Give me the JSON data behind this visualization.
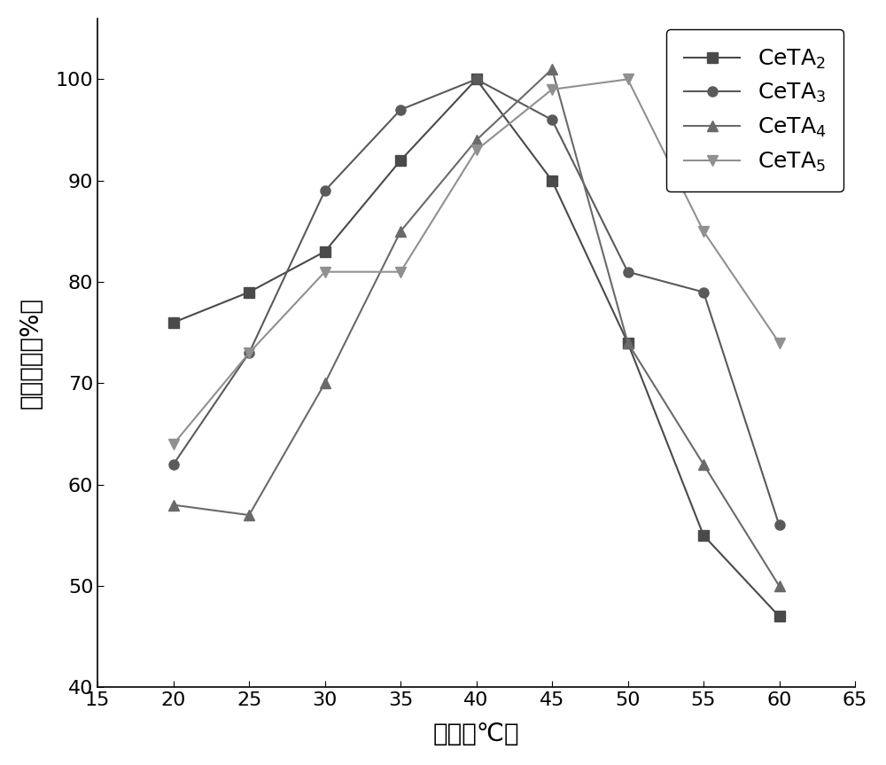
{
  "x": [
    20,
    25,
    30,
    35,
    40,
    45,
    50,
    55,
    60
  ],
  "CeTA2": [
    76,
    79,
    83,
    92,
    100,
    90,
    74,
    55,
    47
  ],
  "CeTA3": [
    62,
    73,
    89,
    97,
    100,
    96,
    81,
    79,
    56
  ],
  "CeTA4": [
    58,
    57,
    70,
    85,
    94,
    101,
    74,
    62,
    50
  ],
  "CeTA5": [
    64,
    73,
    81,
    81,
    93,
    99,
    100,
    85,
    74
  ],
  "xlabel": "温度（℃）",
  "ylabel": "相对酶活（%）",
  "xlim": [
    15,
    65
  ],
  "ylim": [
    40,
    106
  ],
  "xticks": [
    15,
    20,
    25,
    30,
    35,
    40,
    45,
    50,
    55,
    60,
    65
  ],
  "yticks": [
    40,
    50,
    60,
    70,
    80,
    90,
    100
  ],
  "color_CeTA2": "#4a4a4a",
  "color_CeTA3": "#5a5a5a",
  "color_CeTA4": "#6a6a6a",
  "color_CeTA5": "#909090",
  "marker_CeTA2": "s",
  "marker_CeTA3": "o",
  "marker_CeTA4": "^",
  "marker_CeTA5": "v",
  "legend_labels": [
    "CeTA$_2$",
    "CeTA$_3$",
    "CeTA$_4$",
    "CeTA$_5$"
  ],
  "markersize": 8,
  "linewidth": 1.5,
  "tick_labelsize": 16,
  "xlabel_fontsize": 20,
  "ylabel_fontsize": 20,
  "legend_fontsize": 18
}
